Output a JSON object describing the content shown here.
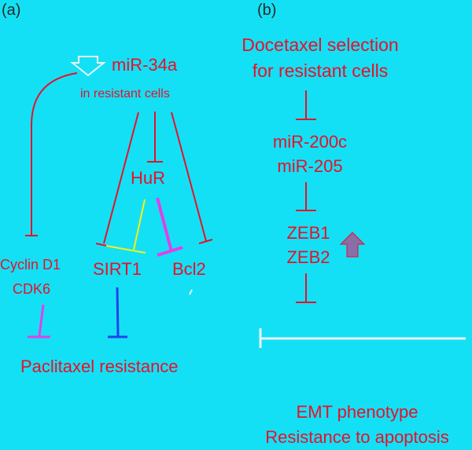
{
  "colors": {
    "background": "#14e0f5",
    "red": "#e8102a",
    "yellow": "#f5f018",
    "magenta": "#e040e8",
    "blue": "#2244e8",
    "white": "#e6f4f8",
    "arrow_fill": "#8a6ea8",
    "label_dark": "#2a2a2a"
  },
  "panel_a": {
    "label": "(a)",
    "mir34a": "miR-34a",
    "mir34a_context": "in resistant cells",
    "hur": "HuR",
    "cyclin_d1": "Cyclin D1",
    "cdk6": "CDK6",
    "sirt1": "SIRT1",
    "bcl2": "Bcl2",
    "outcome": "Paclitaxel resistance",
    "down_arrow_icon": "hollow-down-arrow"
  },
  "panel_b": {
    "label": "(b)",
    "selection_line1": "Docetaxel selection",
    "selection_line2": "for resistant cells",
    "mir200c": "miR-200c",
    "mir205": "miR-205",
    "zeb1": "ZEB1",
    "zeb2": "ZEB2",
    "outcome_line1": "EMT phenotype",
    "outcome_line2": "Resistance to apoptosis",
    "up_arrow_icon": "filled-up-arrow"
  }
}
